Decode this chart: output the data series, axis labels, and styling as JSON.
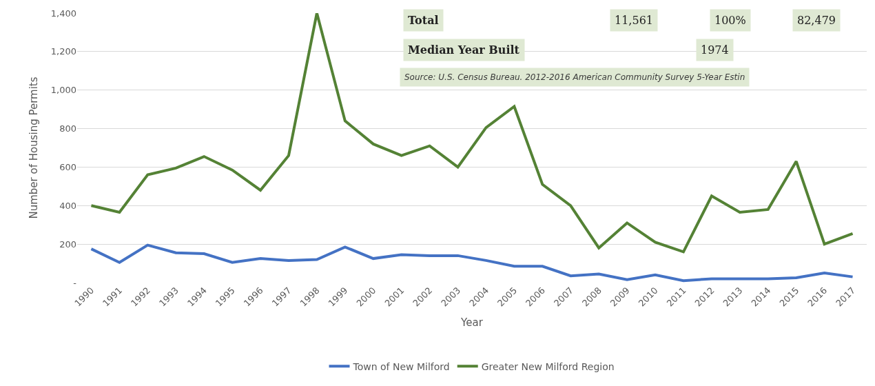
{
  "chart_data": {
    "type": "line",
    "xlabel": "Year",
    "ylabel": "Number of Housing Permits",
    "categories": [
      "1990",
      "1991",
      "1992",
      "1993",
      "1994",
      "1995",
      "1996",
      "1997",
      "1998",
      "1999",
      "2000",
      "2001",
      "2002",
      "2003",
      "2004",
      "2005",
      "2006",
      "2007",
      "2008",
      "2009",
      "2010",
      "2011",
      "2012",
      "2013",
      "2014",
      "2015",
      "2016",
      "2017"
    ],
    "series": [
      {
        "name": "Town of New Milford",
        "color": "#4472c4",
        "values": [
          175,
          105,
          195,
          155,
          150,
          105,
          125,
          115,
          120,
          185,
          125,
          145,
          140,
          140,
          115,
          85,
          85,
          35,
          45,
          15,
          40,
          10,
          20,
          20,
          20,
          25,
          50,
          30
        ]
      },
      {
        "name": "Greater New Milford Region",
        "color": "#548235",
        "values": [
          400,
          365,
          560,
          595,
          655,
          585,
          480,
          660,
          1400,
          840,
          720,
          660,
          710,
          600,
          805,
          915,
          510,
          400,
          180,
          310,
          210,
          160,
          450,
          365,
          380,
          630,
          200,
          255
        ]
      }
    ],
    "ylim": [
      0,
      1400
    ],
    "yticks": [
      {
        "value": 0,
        "label": "-"
      },
      {
        "value": 200,
        "label": "200"
      },
      {
        "value": 400,
        "label": "400"
      },
      {
        "value": 600,
        "label": "600"
      },
      {
        "value": 800,
        "label": "800"
      },
      {
        "value": 1000,
        "label": "1,000"
      },
      {
        "value": 1200,
        "label": "1,200"
      },
      {
        "value": 1400,
        "label": "1,400"
      }
    ],
    "grid": "y",
    "legend": "bottom",
    "marker": "none",
    "line_style": "solid",
    "annotations": [
      "Total",
      "11,561",
      "100%",
      "82,479",
      "Median Year Built",
      "1974",
      "Source: U.S. Census Bureau. 2012-2016 American Community Survey 5-Year Estin"
    ]
  }
}
